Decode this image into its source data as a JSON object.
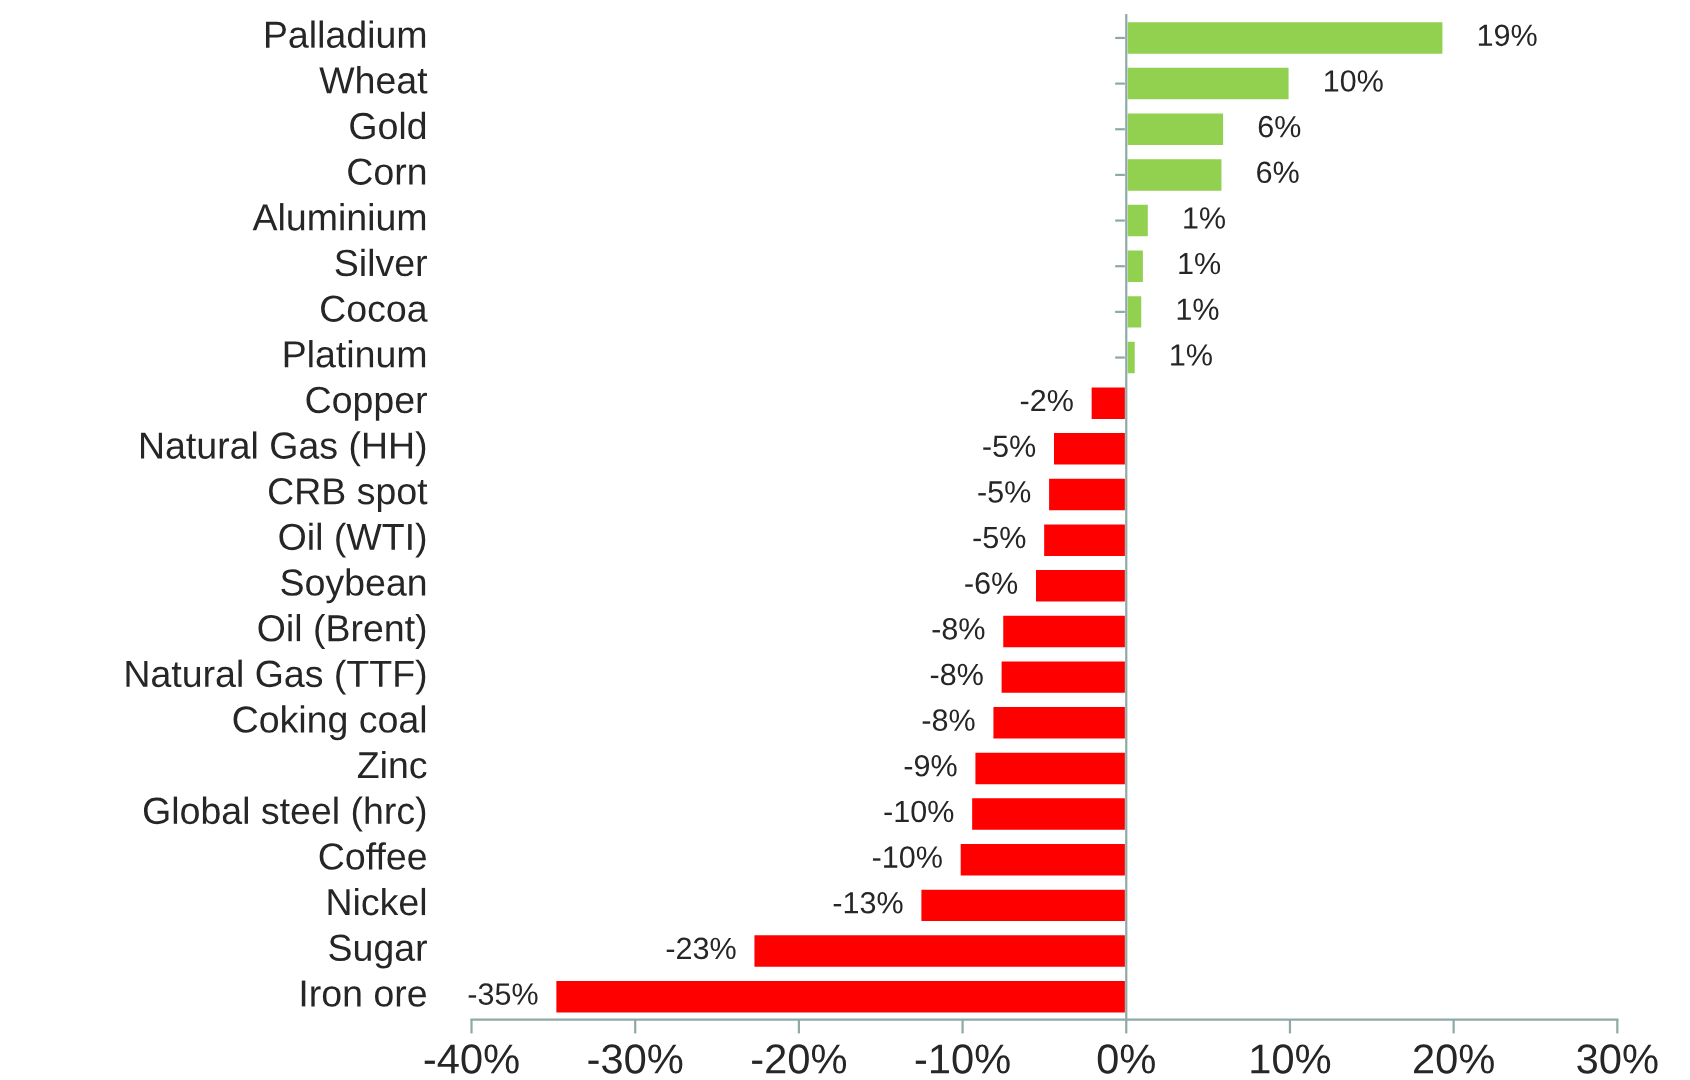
{
  "chart_data": {
    "type": "bar",
    "orientation": "horizontal",
    "categories": [
      "Palladium",
      "Wheat",
      "Gold",
      "Corn",
      "Aluminium",
      "Silver",
      "Cocoa",
      "Platinum",
      "Copper",
      "Natural Gas (HH)",
      "CRB spot",
      "Oil (WTI)",
      "Soybean",
      "Oil (Brent)",
      "Natural Gas (TTF)",
      "Coking coal",
      "Zinc",
      "Global steel (hrc)",
      "Coffee",
      "Nickel",
      "Sugar",
      "Iron ore"
    ],
    "values": [
      19.4,
      10.0,
      6.0,
      5.9,
      1.4,
      1.1,
      1.0,
      0.6,
      -2.2,
      -4.5,
      -4.8,
      -5.1,
      -5.6,
      -7.6,
      -7.7,
      -8.2,
      -9.3,
      -9.5,
      -10.2,
      -12.6,
      -22.8,
      -34.9
    ],
    "value_labels": [
      "19%",
      "10%",
      "6%",
      "6%",
      "1%",
      "1%",
      "1%",
      "1%",
      "-2%",
      "-5%",
      "-5%",
      "-5%",
      "-6%",
      "-8%",
      "-8%",
      "-8%",
      "-9%",
      "-10%",
      "-10%",
      "-13%",
      "-23%",
      "-35%"
    ],
    "colors": [
      "#92d050",
      "#92d050",
      "#92d050",
      "#92d050",
      "#92d050",
      "#92d050",
      "#92d050",
      "#92d050",
      "#ff0000",
      "#ff0000",
      "#ff0000",
      "#ff0000",
      "#ff0000",
      "#ff0000",
      "#ff0000",
      "#ff0000",
      "#ff0000",
      "#ff0000",
      "#ff0000",
      "#ff0000",
      "#ff0000",
      "#ff0000"
    ],
    "xlim": [
      -40,
      30
    ],
    "xticks": [
      {
        "value": -40,
        "label": "-40%"
      },
      {
        "value": -30,
        "label": "-30%"
      },
      {
        "value": -20,
        "label": "-20%"
      },
      {
        "value": -10,
        "label": "-10%"
      },
      {
        "value": 0,
        "label": "0%"
      },
      {
        "value": 10,
        "label": "10%"
      },
      {
        "value": 20,
        "label": "20%"
      },
      {
        "value": 30,
        "label": "30%"
      }
    ],
    "legend": false
  }
}
